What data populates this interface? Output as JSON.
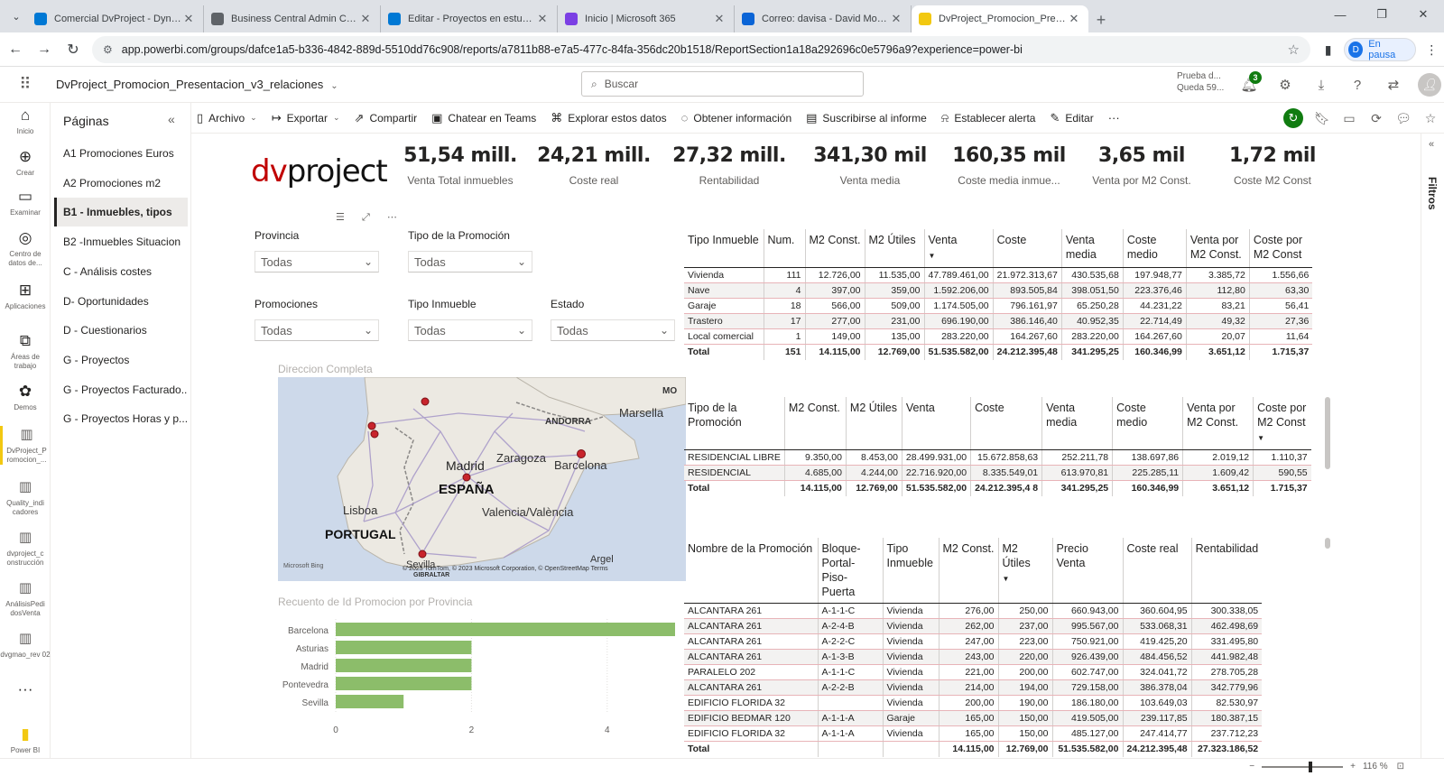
{
  "browser": {
    "tabs": [
      {
        "title": "Comercial DvProject - Dynamic",
        "color": "#0078d4"
      },
      {
        "title": "Business Central Admin Center",
        "color": "#5f6368"
      },
      {
        "title": "Editar - Proyectos en estudio -",
        "color": "#0078d4"
      },
      {
        "title": "Inicio | Microsoft 365",
        "color": "#7b3fe4"
      },
      {
        "title": "Correo: davisa - David Moliné",
        "color": "#0a64d6"
      },
      {
        "title": "DvProject_Promocion_Presenta",
        "color": "#f2c811"
      }
    ],
    "url": "app.powerbi.com/groups/dafce1a5-b336-4842-889d-5510dd76c908/reports/a7811b88-e7a5-477c-84fa-356dc20b1518/ReportSection1a18a292696c0e5796a9?experience=power-bi",
    "profile_initial": "D",
    "profile_label": "En pausa"
  },
  "header": {
    "report_title": "DvProject_Promocion_Presentacion_v3_relaciones",
    "search_placeholder": "Buscar",
    "trial_line1": "Prueba d...",
    "trial_line2": "Queda 59...",
    "notif_count": "3"
  },
  "rail": [
    {
      "icon": "⌂",
      "label": "Inicio"
    },
    {
      "icon": "⊕",
      "label": "Crear"
    },
    {
      "icon": "▭",
      "label": "Examinar"
    },
    {
      "icon": "◎",
      "label": "Centro de datos de..."
    },
    {
      "icon": "⊞",
      "label": "Aplicaciones"
    },
    {
      "icon": "⧉",
      "label": "Áreas de trabajo"
    },
    {
      "icon": "✿",
      "label": "Demos"
    },
    {
      "icon": "▥",
      "label": "DvProject_P romocion_..."
    },
    {
      "icon": "▥",
      "label": "Quality_indi cadores"
    },
    {
      "icon": "▥",
      "label": "dvproject_c onstrucción"
    },
    {
      "icon": "▥",
      "label": "AnálisisPedi dosVenta"
    },
    {
      "icon": "▥",
      "label": "dvgmao_rev 02"
    },
    {
      "icon": "···",
      "label": ""
    },
    {
      "icon": "▮",
      "label": "Power BI"
    }
  ],
  "pages": {
    "heading": "Páginas",
    "items": [
      "A1 Promociones Euros",
      "A2 Promociones m2",
      "B1 - Inmuebles, tipos",
      "B2 -Inmuebles Situacion",
      "C - Análisis costes",
      "D- Oportunidades",
      "D - Cuestionarios",
      "G - Proyectos",
      "G - Proyectos Facturado...",
      "G - Proyectos Horas y p..."
    ],
    "selected_index": 2
  },
  "actions": [
    {
      "icon": "▯",
      "label": "Archivo",
      "caret": true
    },
    {
      "icon": "↦",
      "label": "Exportar",
      "caret": true
    },
    {
      "icon": "⇗",
      "label": "Compartir",
      "caret": false
    },
    {
      "icon": "▣",
      "label": "Chatear en Teams",
      "caret": false
    },
    {
      "icon": "⌘",
      "label": "Explorar estos datos",
      "caret": false
    },
    {
      "icon": "◌",
      "label": "Obtener información",
      "caret": false
    },
    {
      "icon": "▤",
      "label": "Suscribirse al informe",
      "caret": false
    },
    {
      "icon": "⍾",
      "label": "Establecer alerta",
      "caret": false
    },
    {
      "icon": "✎",
      "label": "Editar",
      "caret": false
    },
    {
      "icon": "···",
      "label": "",
      "caret": false
    }
  ],
  "filters_label": "Filtros",
  "logo": {
    "a": "dv",
    "b": "project"
  },
  "kpis": [
    {
      "value": "51,54 mill.",
      "label": "Venta Total inmuebles"
    },
    {
      "value": "24,21 mill.",
      "label": "Coste real"
    },
    {
      "value": "27,32 mill.",
      "label": "Rentabilidad"
    },
    {
      "value": "341,30 mil",
      "label": "Venta media"
    },
    {
      "value": "160,35 mil",
      "label": "Coste media inmue..."
    },
    {
      "value": "3,65 mil",
      "label": "Venta por M2 Const."
    },
    {
      "value": "1,72 mil",
      "label": "Coste M2 Const"
    }
  ],
  "slicers": [
    {
      "label": "Provincia",
      "value": "Todas"
    },
    {
      "label": "Tipo de la Promoción",
      "value": "Todas"
    },
    {
      "label": "Promociones",
      "value": "Todas"
    },
    {
      "label": "Tipo Inmueble",
      "value": "Todas"
    },
    {
      "label": "Estado",
      "value": "Todas"
    }
  ],
  "map": {
    "title": "Direccion Completa",
    "labels": {
      "marsella": "Marsella",
      "andorra": "ANDORRA",
      "madrid": "Madrid",
      "zaragoza": "Zaragoza",
      "barcelona": "Barcelona",
      "espana": "ESPAÑA",
      "lisboa": "Lisboa",
      "valencia": "Valencia/València",
      "portugal": "PORTUGAL",
      "argel": "Argel",
      "sevilla": "Sevilla",
      "mo": "MO",
      "gibraltar": "GIBRALTAR"
    },
    "bing": "Microsoft Bing",
    "copyright": "© 2023 TomTom, © 2023 Microsoft Corporation, © OpenStreetMap  Terms"
  },
  "chart_data": {
    "type": "bar",
    "orientation": "horizontal",
    "title": "Recuento de Id Promocion por Provincia",
    "categories": [
      "Barcelona",
      "Asturias",
      "Madrid",
      "Pontevedra",
      "Sevilla"
    ],
    "values": [
      5,
      2,
      2,
      2,
      1
    ],
    "xlim": [
      0,
      5
    ],
    "xticks": [
      0,
      2,
      4
    ],
    "color": "#8cbd6a"
  },
  "table1": {
    "headers": [
      "Tipo Inmueble",
      "Num.",
      "M2 Const.",
      "M2 Útiles",
      "Venta",
      "Coste",
      "Venta media",
      "Coste medio",
      "Venta por M2 Const.",
      "Coste por M2 Const"
    ],
    "rows": [
      [
        "Vivienda",
        "111",
        "12.726,00",
        "11.535,00",
        "47.789.461,00",
        "21.972.313,67",
        "430.535,68",
        "197.948,77",
        "3.385,72",
        "1.556,66"
      ],
      [
        "Nave",
        "4",
        "397,00",
        "359,00",
        "1.592.206,00",
        "893.505,84",
        "398.051,50",
        "223.376,46",
        "112,80",
        "63,30"
      ],
      [
        "Garaje",
        "18",
        "566,00",
        "509,00",
        "1.174.505,00",
        "796.161,97",
        "65.250,28",
        "44.231,22",
        "83,21",
        "56,41"
      ],
      [
        "Trastero",
        "17",
        "277,00",
        "231,00",
        "696.190,00",
        "386.146,40",
        "40.952,35",
        "22.714,49",
        "49,32",
        "27,36"
      ],
      [
        "Local comercial",
        "1",
        "149,00",
        "135,00",
        "283.220,00",
        "164.267,60",
        "283.220,00",
        "164.267,60",
        "20,07",
        "11,64"
      ]
    ],
    "total": [
      "Total",
      "151",
      "14.115,00",
      "12.769,00",
      "51.535.582,00",
      "24.212.395,48",
      "341.295,25",
      "160.346,99",
      "3.651,12",
      "1.715,37"
    ]
  },
  "table2": {
    "headers": [
      "Tipo de la Promoción",
      "M2 Const.",
      "M2 Útiles",
      "Venta",
      "Coste",
      "Venta media",
      "Coste medio",
      "Venta por M2 Const.",
      "Coste por M2 Const"
    ],
    "rows": [
      [
        "RESIDENCIAL LIBRE",
        "9.350,00",
        "8.453,00",
        "28.499.931,00",
        "15.672.858,63",
        "252.211,78",
        "138.697,86",
        "2.019,12",
        "1.110,37"
      ],
      [
        "RESIDENCIAL",
        "4.685,00",
        "4.244,00",
        "22.716.920,00",
        "8.335.549,01",
        "613.970,81",
        "225.285,11",
        "1.609,42",
        "590,55"
      ]
    ],
    "total": [
      "Total",
      "14.115,00",
      "12.769,00",
      "51.535.582,00",
      "24.212.395,4 8",
      "341.295,25",
      "160.346,99",
      "3.651,12",
      "1.715,37"
    ]
  },
  "table3": {
    "headers": [
      "Nombre de la Promoción",
      "Bloque-Portal-Piso-Puerta",
      "Tipo Inmueble",
      "M2 Const.",
      "M2 Útiles",
      "Precio Venta",
      "Coste real",
      "Rentabilidad"
    ],
    "rows": [
      [
        "ALCANTARA 261",
        "A-1-1-C",
        "Vivienda",
        "276,00",
        "250,00",
        "660.943,00",
        "360.604,95",
        "300.338,05"
      ],
      [
        "ALCANTARA 261",
        "A-2-4-B",
        "Vivienda",
        "262,00",
        "237,00",
        "995.567,00",
        "533.068,31",
        "462.498,69"
      ],
      [
        "ALCANTARA 261",
        "A-2-2-C",
        "Vivienda",
        "247,00",
        "223,00",
        "750.921,00",
        "419.425,20",
        "331.495,80"
      ],
      [
        "ALCANTARA 261",
        "A-1-3-B",
        "Vivienda",
        "243,00",
        "220,00",
        "926.439,00",
        "484.456,52",
        "441.982,48"
      ],
      [
        "PARALELO 202",
        "A-1-1-C",
        "Vivienda",
        "221,00",
        "200,00",
        "602.747,00",
        "324.041,72",
        "278.705,28"
      ],
      [
        "ALCANTARA 261",
        "A-2-2-B",
        "Vivienda",
        "214,00",
        "194,00",
        "729.158,00",
        "386.378,04",
        "342.779,96"
      ],
      [
        "EDIFICIO FLORIDA 32",
        "",
        "Vivienda",
        "200,00",
        "190,00",
        "186.180,00",
        "103.649,03",
        "82.530,97"
      ],
      [
        "EDIFICIO BEDMAR 120",
        "A-1-1-A",
        "Garaje",
        "165,00",
        "150,00",
        "419.505,00",
        "239.117,85",
        "180.387,15"
      ],
      [
        "EDIFICIO FLORIDA 32",
        "A-1-1-A",
        "Vivienda",
        "165,00",
        "150,00",
        "485.127,00",
        "247.414,77",
        "237.712,23"
      ]
    ],
    "total": [
      "Total",
      "",
      "",
      "14.115,00",
      "12.769,00",
      "51.535.582,00",
      "24.212.395,48",
      "27.323.186,52"
    ]
  },
  "status": {
    "zoom": "116 %"
  }
}
